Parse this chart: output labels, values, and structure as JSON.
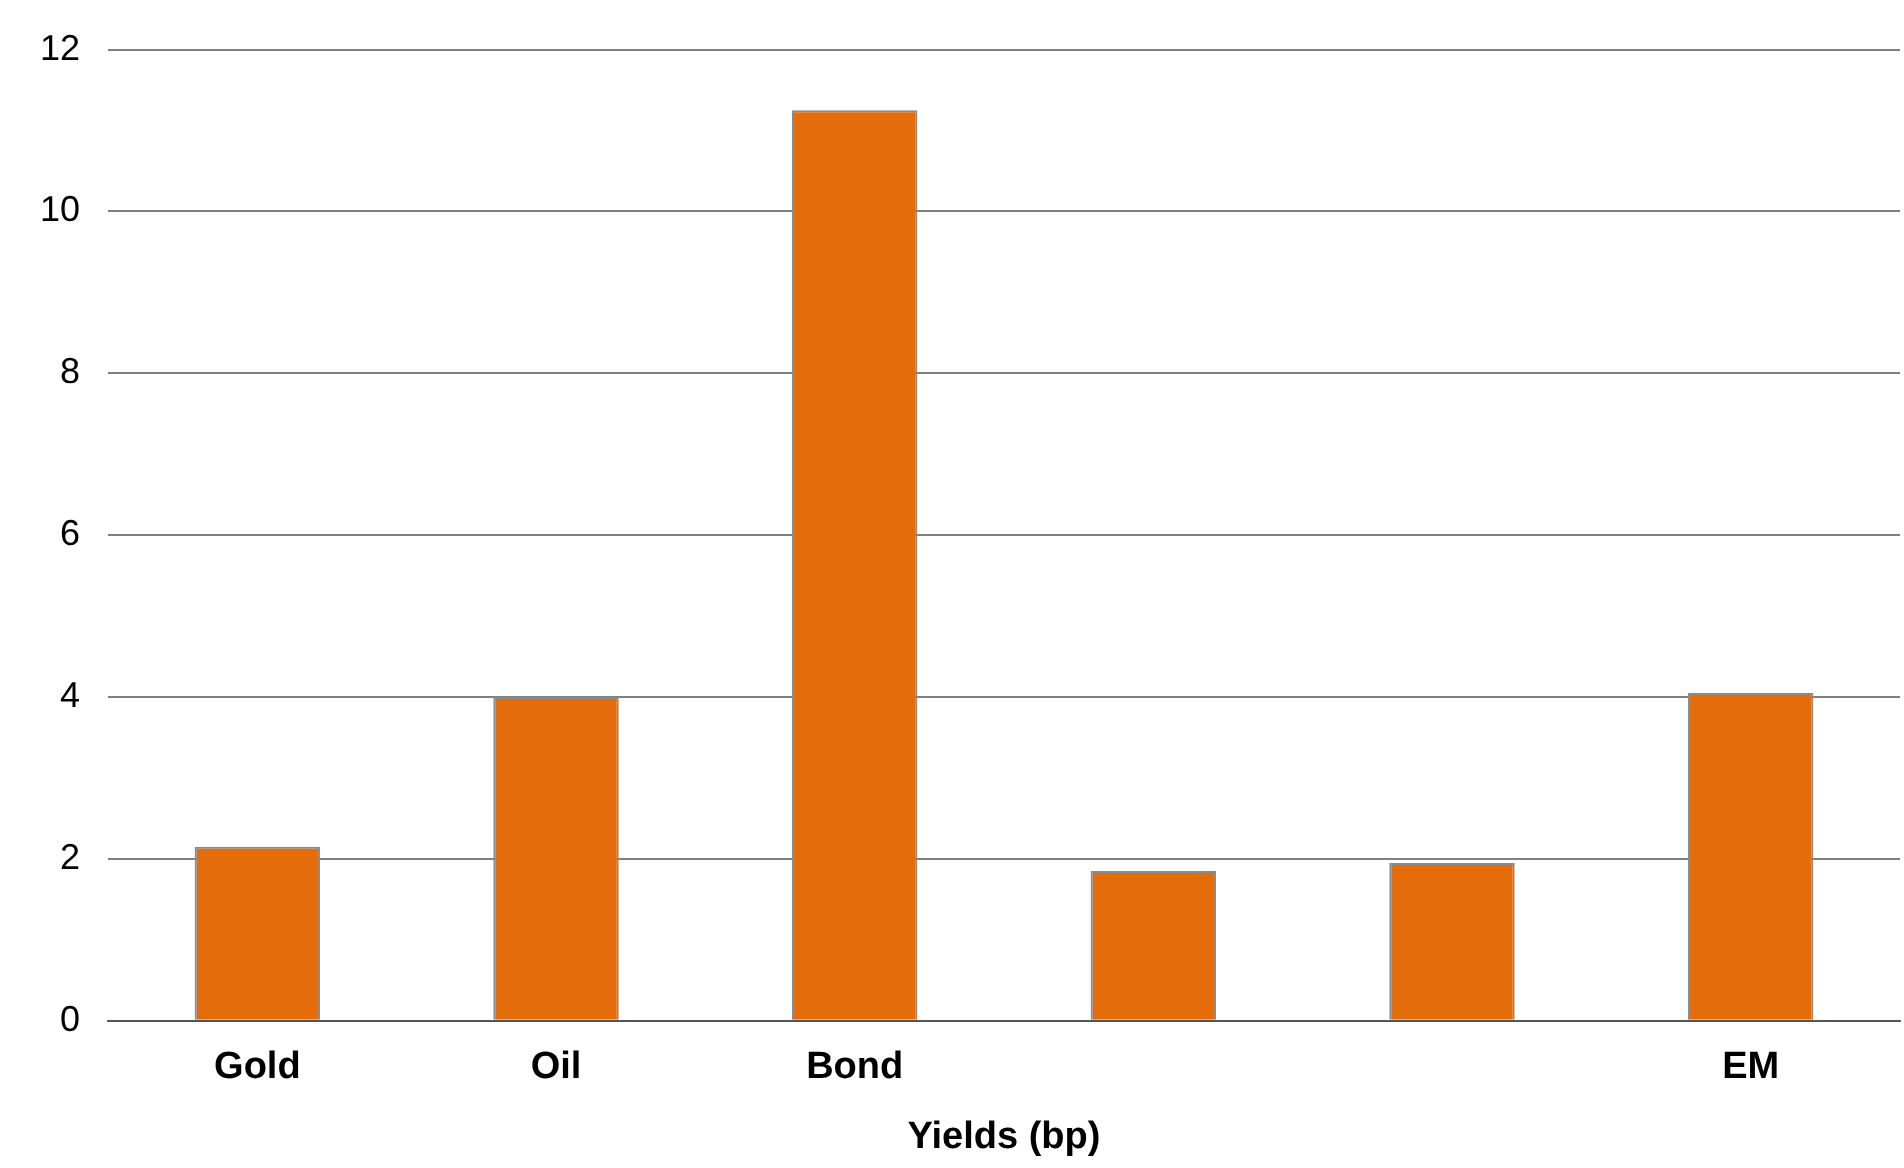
{
  "chart_data": {
    "type": "bar",
    "xlabel": "Yields (bp)",
    "categories": [
      "Gold",
      "Oil",
      "Bond",
      null,
      null,
      "EM"
    ],
    "values": [
      2.15,
      4.0,
      11.25,
      1.85,
      1.95,
      4.05
    ],
    "color": "#e46c0a",
    "ylim": [
      0,
      12
    ],
    "yticks": [
      0,
      2,
      4,
      6,
      8,
      10,
      12
    ],
    "grid": "y",
    "legend": false
  }
}
